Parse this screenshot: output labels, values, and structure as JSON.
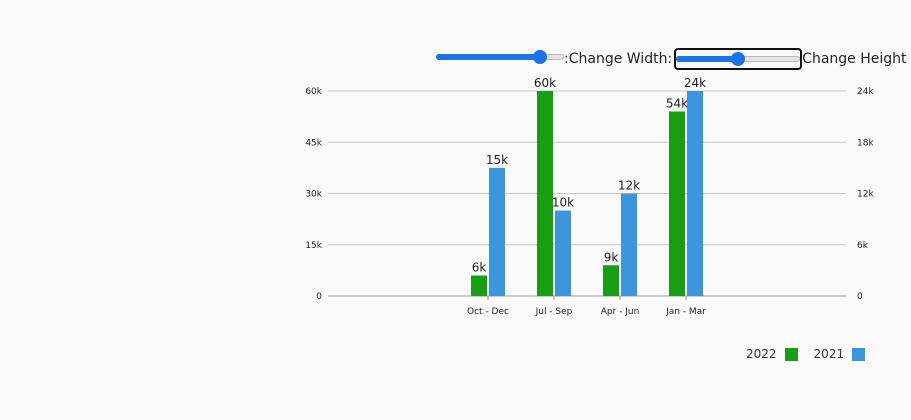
{
  "controls": {
    "width_label": ":Change Width:",
    "height_label": "Change Height",
    "width_value": 0.85,
    "height_value": 0.5
  },
  "colors": {
    "series_2022": "#189e12",
    "series_2021": "#3d95dd"
  },
  "chart_data": {
    "type": "bar",
    "categories": [
      "Oct - Dec",
      "Jul - Sep",
      "Apr - Jun",
      "Jan - Mar"
    ],
    "series": [
      {
        "name": "2022",
        "values": [
          6,
          60,
          9,
          54
        ],
        "labels": [
          "6k",
          "60k",
          "9k",
          "54k"
        ],
        "axis": "left"
      },
      {
        "name": "2021",
        "values": [
          15,
          10,
          12,
          24
        ],
        "labels": [
          "15k",
          "10k",
          "12k",
          "24k"
        ],
        "axis": "right"
      }
    ],
    "y_left": {
      "ylim": [
        0,
        60
      ],
      "ticks": [
        "0",
        "15k",
        "30k",
        "45k",
        "60k"
      ]
    },
    "y_right": {
      "ylim": [
        0,
        24
      ],
      "ticks": [
        "0",
        "6k",
        "12k",
        "18k",
        "24k"
      ]
    },
    "grid": true,
    "legend": "bottom-right"
  }
}
